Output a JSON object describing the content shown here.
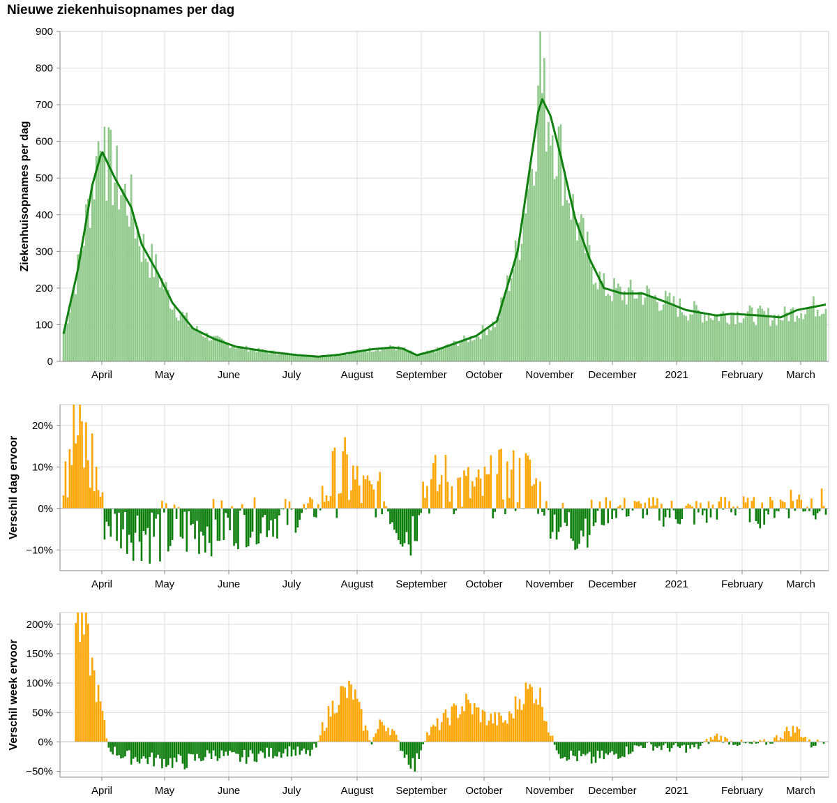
{
  "title": "Nieuwe ziekenhuisopnames per dag",
  "colors": {
    "bars_light": "#8fc98a",
    "line": "#108010",
    "positive": "#ffa500",
    "negative": "#0a7d0a",
    "grid": "#dddddd",
    "axis": "#888888"
  },
  "chart_data": [
    {
      "type": "bar",
      "ylabel": "Ziekenhuisopnames per dag",
      "ylim": [
        0,
        900
      ],
      "yticks": [
        0,
        100,
        200,
        300,
        400,
        500,
        600,
        700,
        800,
        900
      ],
      "ytick_labels": [
        "0",
        "100",
        "200",
        "300",
        "400",
        "500",
        "600",
        "700",
        "800",
        "900"
      ],
      "xtick_labels": [
        "April",
        "May",
        "June",
        "July",
        "August",
        "September",
        "October",
        "November",
        "December",
        "2021",
        "February",
        "March"
      ],
      "x_range": [
        "2020-03-13",
        "2021-03-19"
      ],
      "grid": true,
      "anchors": [
        [
          "2020-03-13",
          75
        ],
        [
          "2020-03-20",
          250
        ],
        [
          "2020-03-27",
          480
        ],
        [
          "2020-03-31",
          560
        ],
        [
          "2020-04-01",
          570
        ],
        [
          "2020-04-07",
          500
        ],
        [
          "2020-04-15",
          420
        ],
        [
          "2020-04-20",
          320
        ],
        [
          "2020-04-28",
          240
        ],
        [
          "2020-05-05",
          160
        ],
        [
          "2020-05-15",
          90
        ],
        [
          "2020-05-25",
          62
        ],
        [
          "2020-06-05",
          40
        ],
        [
          "2020-06-20",
          27
        ],
        [
          "2020-07-05",
          17
        ],
        [
          "2020-07-15",
          13
        ],
        [
          "2020-07-25",
          18
        ],
        [
          "2020-08-01",
          25
        ],
        [
          "2020-08-10",
          33
        ],
        [
          "2020-08-20",
          38
        ],
        [
          "2020-08-25",
          35
        ],
        [
          "2020-09-01",
          17
        ],
        [
          "2020-09-10",
          30
        ],
        [
          "2020-09-20",
          50
        ],
        [
          "2020-09-30",
          70
        ],
        [
          "2020-10-10",
          110
        ],
        [
          "2020-10-20",
          300
        ],
        [
          "2020-10-26",
          530
        ],
        [
          "2020-10-30",
          680
        ],
        [
          "2020-11-01",
          715
        ],
        [
          "2020-11-05",
          670
        ],
        [
          "2020-11-10",
          560
        ],
        [
          "2020-11-17",
          390
        ],
        [
          "2020-11-24",
          280
        ],
        [
          "2020-12-01",
          200
        ],
        [
          "2020-12-10",
          185
        ],
        [
          "2020-12-20",
          185
        ],
        [
          "2021-01-01",
          160
        ],
        [
          "2021-01-10",
          140
        ],
        [
          "2021-01-25",
          125
        ],
        [
          "2021-02-01",
          130
        ],
        [
          "2021-02-15",
          125
        ],
        [
          "2021-02-25",
          120
        ],
        [
          "2021-03-05",
          140
        ],
        [
          "2021-03-19",
          155
        ]
      ],
      "bar_noise": 0.22,
      "bar_spikes": [
        [
          "2020-10-31",
          900
        ],
        [
          "2020-04-02",
          640
        ],
        [
          "2020-03-30",
          600
        ]
      ]
    },
    {
      "type": "bar",
      "ylabel": "Verschil dag ervoor",
      "ylim": [
        -15,
        25
      ],
      "yticks": [
        -10,
        0,
        10,
        20
      ],
      "ytick_labels": [
        "−10%",
        "0%",
        "10%",
        "20%"
      ],
      "xtick_labels": [
        "April",
        "May",
        "June",
        "July",
        "August",
        "September",
        "October",
        "November",
        "December",
        "2021",
        "February",
        "March"
      ],
      "unit": "%",
      "anchors": [
        [
          "2020-03-13",
          18
        ],
        [
          "2020-03-20",
          17
        ],
        [
          "2020-03-28",
          10
        ],
        [
          "2020-04-01",
          1
        ],
        [
          "2020-04-02",
          -3
        ],
        [
          "2020-04-15",
          -5
        ],
        [
          "2020-05-01",
          -6
        ],
        [
          "2020-06-01",
          -4
        ],
        [
          "2020-07-01",
          -2
        ],
        [
          "2020-07-15",
          0
        ],
        [
          "2020-07-20",
          6
        ],
        [
          "2020-07-30",
          8
        ],
        [
          "2020-08-05",
          4
        ],
        [
          "2020-08-15",
          3
        ],
        [
          "2020-08-20",
          -2
        ],
        [
          "2020-08-28",
          -6
        ],
        [
          "2020-09-01",
          -3
        ],
        [
          "2020-09-03",
          5
        ],
        [
          "2020-09-15",
          6
        ],
        [
          "2020-10-01",
          4
        ],
        [
          "2020-10-10",
          6
        ],
        [
          "2020-10-25",
          7
        ],
        [
          "2020-11-01",
          3
        ],
        [
          "2020-11-04",
          -2
        ],
        [
          "2020-11-15",
          -5
        ],
        [
          "2020-11-25",
          -3
        ],
        [
          "2020-12-05",
          0
        ],
        [
          "2020-12-20",
          0
        ],
        [
          "2021-01-01",
          -1
        ],
        [
          "2021-01-20",
          -1
        ],
        [
          "2021-02-01",
          1
        ],
        [
          "2021-02-15",
          -1
        ],
        [
          "2021-03-01",
          2
        ],
        [
          "2021-03-19",
          1
        ]
      ],
      "bar_noise": 0.9
    },
    {
      "type": "bar",
      "ylabel": "Verschil week ervoor",
      "ylim": [
        -60,
        220
      ],
      "yticks": [
        -50,
        0,
        50,
        100,
        150,
        200
      ],
      "ytick_labels": [
        "−50%",
        "0%",
        "50%",
        "100%",
        "150%",
        "200%"
      ],
      "xtick_labels": [
        "April",
        "May",
        "June",
        "July",
        "August",
        "September",
        "October",
        "November",
        "December",
        "2021",
        "February",
        "March"
      ],
      "unit": "%",
      "anchors": [
        [
          "2020-03-19",
          205
        ],
        [
          "2020-03-24",
          180
        ],
        [
          "2020-03-28",
          110
        ],
        [
          "2020-04-01",
          45
        ],
        [
          "2020-04-04",
          -10
        ],
        [
          "2020-04-12",
          -25
        ],
        [
          "2020-04-25",
          -30
        ],
        [
          "2020-05-10",
          -35
        ],
        [
          "2020-05-25",
          -20
        ],
        [
          "2020-06-05",
          -28
        ],
        [
          "2020-06-20",
          -20
        ],
        [
          "2020-07-01",
          -15
        ],
        [
          "2020-07-10",
          -22
        ],
        [
          "2020-07-15",
          -5
        ],
        [
          "2020-07-17",
          25
        ],
        [
          "2020-07-25",
          80
        ],
        [
          "2020-08-01",
          85
        ],
        [
          "2020-08-06",
          30
        ],
        [
          "2020-08-10",
          0
        ],
        [
          "2020-08-15",
          35
        ],
        [
          "2020-08-20",
          20
        ],
        [
          "2020-08-25",
          -15
        ],
        [
          "2020-08-31",
          -42
        ],
        [
          "2020-09-05",
          10
        ],
        [
          "2020-09-15",
          40
        ],
        [
          "2020-09-25",
          65
        ],
        [
          "2020-10-05",
          40
        ],
        [
          "2020-10-15",
          35
        ],
        [
          "2020-10-22",
          80
        ],
        [
          "2020-10-28",
          90
        ],
        [
          "2020-11-01",
          70
        ],
        [
          "2020-11-05",
          10
        ],
        [
          "2020-11-10",
          -20
        ],
        [
          "2020-11-25",
          -30
        ],
        [
          "2020-12-10",
          -18
        ],
        [
          "2020-12-20",
          -5
        ],
        [
          "2021-01-01",
          -10
        ],
        [
          "2021-01-15",
          -10
        ],
        [
          "2021-01-25",
          10
        ],
        [
          "2021-02-01",
          0
        ],
        [
          "2021-02-10",
          -5
        ],
        [
          "2021-02-20",
          0
        ],
        [
          "2021-03-01",
          20
        ],
        [
          "2021-03-06",
          20
        ],
        [
          "2021-03-12",
          -5
        ],
        [
          "2021-03-19",
          5
        ]
      ],
      "bar_noise": 0.25
    }
  ]
}
